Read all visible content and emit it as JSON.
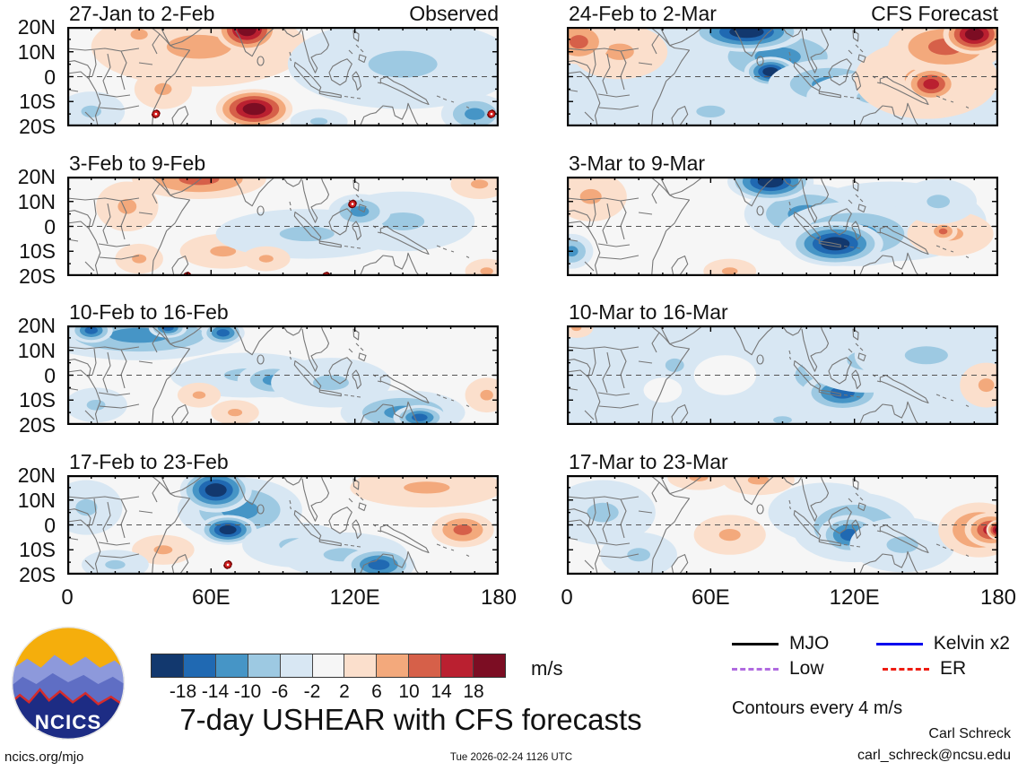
{
  "figure": {
    "title": "7-day USHEAR with CFS forecasts",
    "unit_label": "m/s",
    "contour_note": "Contours every 4 m/s",
    "credit_name": "Carl Schreck",
    "credit_email": "carl_schreck@ncsu.edu",
    "footer_left": "ncics.org/mjo",
    "footer_center": "Tue 2026-02-24 1126 UTC",
    "logo_text": "NCICS"
  },
  "axes": {
    "lat_tick_labels": [
      "20N",
      "10N",
      "0",
      "10S",
      "20S"
    ],
    "lon_tick_labels": [
      "0",
      "60E",
      "120E",
      "180"
    ],
    "lon_range_deg": [
      0,
      180
    ],
    "lat_range_deg": [
      -20,
      20
    ]
  },
  "colorbar": {
    "levels": [
      -18,
      -14,
      -10,
      -6,
      -2,
      2,
      6,
      10,
      14,
      18
    ],
    "colors": [
      "#12386e",
      "#2069b2",
      "#4695c6",
      "#9dc9e2",
      "#d8e7f3",
      "#f6f6f6",
      "#fbdfcc",
      "#f3a97c",
      "#d66049",
      "#ba2030",
      "#7c0d23"
    ]
  },
  "legend": {
    "items": [
      {
        "label": "MJO",
        "color": "#000000",
        "dashed": false
      },
      {
        "label": "Kelvin x2",
        "color": "#0000ee",
        "dashed": false
      },
      {
        "label": "Low",
        "color": "#b06ae0",
        "dashed": true
      },
      {
        "label": "ER",
        "color": "#ee1c11",
        "dashed": true
      }
    ]
  },
  "chart_data": {
    "type": "heatmap",
    "title": "7-day USHEAR with CFS forecasts",
    "unit": "m/s",
    "contour_interval_ms": 4,
    "lon_range": [
      0,
      180
    ],
    "lat_range": [
      -20,
      20
    ],
    "note": "blobs = anomaly centers [lon_deg, lat_deg, rx_deg, ry_deg, peak_m_per_s]; peak 0 = near-zero (white) patch",
    "panels": [
      {
        "title": "27-Jan to 2-Feb",
        "corner": "Observed",
        "col": 0,
        "row": 0,
        "bg": -1,
        "blobs": [
          [
            55,
            12,
            45,
            16,
            6
          ],
          [
            30,
            17,
            12,
            7,
            6
          ],
          [
            75,
            19,
            13,
            9,
            18
          ],
          [
            78,
            -13,
            16,
            8,
            18
          ],
          [
            40,
            -5,
            12,
            8,
            6
          ],
          [
            140,
            5,
            48,
            18,
            -6
          ],
          [
            170,
            -15,
            14,
            8,
            -10
          ],
          [
            10,
            -14,
            14,
            8,
            -6
          ],
          [
            105,
            -18,
            12,
            5,
            -6
          ]
        ],
        "storms": [
          {
            "lon": 37,
            "lat": -15
          },
          {
            "lon": 177,
            "lat": -15
          }
        ]
      },
      {
        "title": "3-Feb to 9-Feb",
        "col": 0,
        "row": 1,
        "bg": -1,
        "blobs": [
          [
            55,
            19,
            28,
            8,
            10
          ],
          [
            25,
            8,
            13,
            10,
            6
          ],
          [
            65,
            -10,
            18,
            7,
            6
          ],
          [
            30,
            -13,
            10,
            6,
            6
          ],
          [
            100,
            -3,
            38,
            10,
            -6
          ],
          [
            140,
            2,
            30,
            12,
            -6
          ],
          [
            122,
            6,
            13,
            7,
            -10
          ],
          [
            172,
            17,
            12,
            6,
            6
          ],
          [
            175,
            -18,
            9,
            5,
            6
          ],
          [
            83,
            -13,
            10,
            5,
            6
          ]
        ],
        "storms": [
          {
            "lon": 119,
            "lat": 9
          },
          {
            "lon": 50,
            "lat": -20
          },
          {
            "lon": 108,
            "lat": -20
          }
        ]
      },
      {
        "title": "10-Feb to 16-Feb",
        "col": 0,
        "row": 2,
        "bg": -1,
        "blobs": [
          [
            30,
            16,
            42,
            10,
            -10
          ],
          [
            10,
            18,
            9,
            5,
            -14
          ],
          [
            42,
            19,
            8,
            4,
            -14
          ],
          [
            65,
            17,
            9,
            5,
            -14
          ],
          [
            75,
            0,
            32,
            9,
            -6
          ],
          [
            86,
            -2,
            15,
            7,
            -10
          ],
          [
            110,
            -3,
            25,
            10,
            -6
          ],
          [
            140,
            -15,
            26,
            9,
            -10
          ],
          [
            147,
            -17,
            11,
            5,
            -14
          ],
          [
            55,
            -8,
            9,
            5,
            6
          ],
          [
            70,
            -15,
            10,
            5,
            6
          ],
          [
            175,
            -8,
            9,
            7,
            6
          ],
          [
            12,
            -12,
            13,
            7,
            -6
          ]
        ],
        "storms": []
      },
      {
        "title": "17-Feb to 23-Feb",
        "col": 0,
        "row": 3,
        "bg": -1,
        "blobs": [
          [
            72,
            6,
            26,
            13,
            -10
          ],
          [
            62,
            14,
            15,
            9,
            -18
          ],
          [
            67,
            -2,
            12,
            6,
            -18
          ],
          [
            95,
            -8,
            22,
            9,
            -6
          ],
          [
            115,
            -12,
            27,
            9,
            -6
          ],
          [
            130,
            -16,
            15,
            7,
            -14
          ],
          [
            150,
            15,
            32,
            8,
            6
          ],
          [
            165,
            -2,
            13,
            7,
            10
          ],
          [
            40,
            -10,
            13,
            6,
            6
          ],
          [
            8,
            7,
            15,
            11,
            -6
          ],
          [
            20,
            -16,
            14,
            6,
            -6
          ]
        ],
        "storms": [
          {
            "lon": 67,
            "lat": -16
          }
        ]
      },
      {
        "title": "24-Feb to 2-Mar",
        "corner": "CFS Forecast",
        "col": 1,
        "row": 0,
        "bg": -3,
        "blobs": [
          [
            88,
            8,
            32,
            13,
            -10
          ],
          [
            75,
            18,
            24,
            8,
            -18
          ],
          [
            85,
            2,
            11,
            6,
            -18
          ],
          [
            110,
            -3,
            26,
            10,
            -10
          ],
          [
            130,
            -8,
            30,
            10,
            -6
          ],
          [
            150,
            -1,
            30,
            16,
            6
          ],
          [
            158,
            12,
            24,
            11,
            10
          ],
          [
            170,
            17,
            13,
            8,
            18
          ],
          [
            152,
            -3,
            11,
            7,
            14
          ],
          [
            22,
            10,
            20,
            11,
            6
          ],
          [
            5,
            14,
            13,
            9,
            10
          ],
          [
            60,
            -14,
            20,
            8,
            -6
          ]
        ],
        "storms": []
      },
      {
        "title": "3-Mar to 9-Mar",
        "col": 1,
        "row": 1,
        "bg": -1,
        "blobs": [
          [
            135,
            2,
            40,
            16,
            -6
          ],
          [
            100,
            5,
            26,
            12,
            -10
          ],
          [
            120,
            -3,
            32,
            13,
            -10
          ],
          [
            85,
            18,
            18,
            8,
            -18
          ],
          [
            112,
            -7,
            20,
            9,
            -18
          ],
          [
            10,
            12,
            15,
            10,
            6
          ],
          [
            160,
            -3,
            18,
            9,
            6
          ],
          [
            157,
            -2,
            6,
            4,
            10
          ],
          [
            2,
            -10,
            9,
            7,
            -10
          ],
          [
            68,
            -18,
            11,
            5,
            6
          ],
          [
            155,
            10,
            16,
            9,
            -6
          ]
        ],
        "storms": []
      },
      {
        "title": "10-Mar to 16-Mar",
        "col": 1,
        "row": 2,
        "bg": -3,
        "blobs": [
          [
            116,
            0,
            32,
            13,
            -10
          ],
          [
            115,
            -7,
            17,
            8,
            -14
          ],
          [
            125,
            6,
            27,
            13,
            -6
          ],
          [
            45,
            4,
            13,
            9,
            -6
          ],
          [
            150,
            8,
            30,
            12,
            -6
          ],
          [
            90,
            -18,
            13,
            5,
            -6
          ],
          [
            175,
            -4,
            11,
            9,
            6
          ],
          [
            4,
            19,
            7,
            4,
            6
          ],
          [
            66,
            0,
            13,
            8,
            0
          ],
          [
            40,
            -6,
            8,
            5,
            0
          ]
        ],
        "storms": []
      },
      {
        "title": "17-Mar to 23-Mar",
        "col": 1,
        "row": 3,
        "bg": -1,
        "blobs": [
          [
            15,
            5,
            22,
            13,
            -6
          ],
          [
            30,
            -12,
            16,
            9,
            -6
          ],
          [
            108,
            5,
            24,
            12,
            -6
          ],
          [
            120,
            -1,
            26,
            14,
            -10
          ],
          [
            118,
            -4,
            13,
            8,
            -14
          ],
          [
            140,
            -8,
            22,
            11,
            -6
          ],
          [
            68,
            -4,
            15,
            8,
            6
          ],
          [
            55,
            19,
            13,
            5,
            6
          ],
          [
            80,
            18,
            15,
            6,
            6
          ],
          [
            172,
            -2,
            17,
            11,
            10
          ],
          [
            177,
            -2,
            11,
            7,
            14
          ],
          [
            180,
            -2,
            5,
            4,
            18
          ]
        ],
        "storms": []
      }
    ]
  }
}
